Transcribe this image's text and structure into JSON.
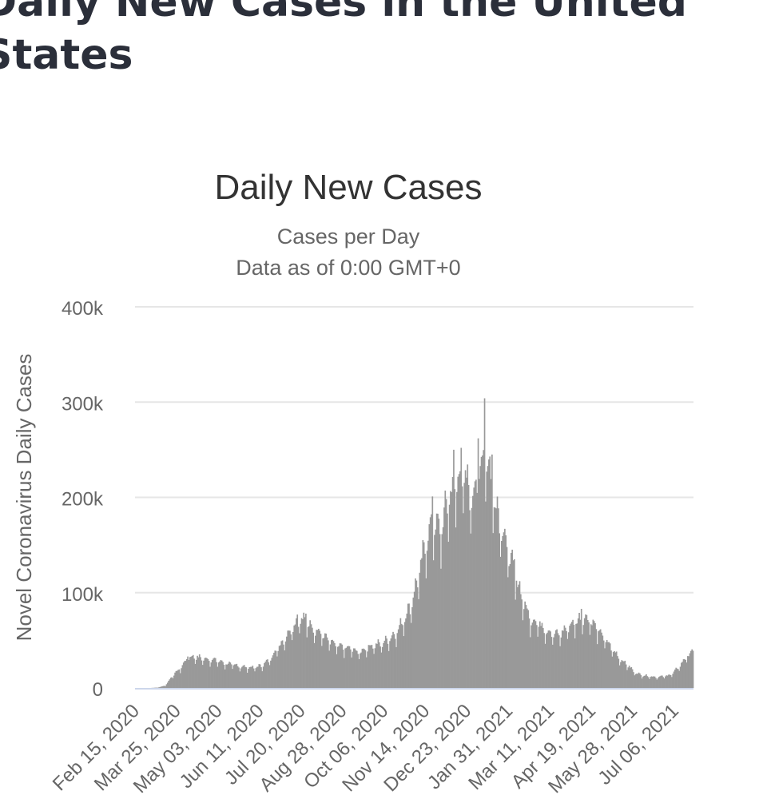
{
  "page": {
    "heading": "Daily New Cases in the United States"
  },
  "chart_data": {
    "type": "bar",
    "title": "Daily New Cases",
    "subtitle_lines": [
      "Cases per Day",
      "Data as of 0:00 GMT+0"
    ],
    "xlabel": "",
    "ylabel": "Novel Coronavirus Daily Cases",
    "ylim": [
      0,
      400000
    ],
    "y_ticks": [
      0,
      100000,
      200000,
      300000,
      400000
    ],
    "y_tick_labels": [
      "0",
      "100k",
      "200k",
      "300k",
      "400k"
    ],
    "x_tick_labels": [
      "Feb 15, 2020",
      "Mar 25, 2020",
      "May 03, 2020",
      "Jun 11, 2020",
      "Jul 20, 2020",
      "Aug 28, 2020",
      "Oct 06, 2020",
      "Nov 14, 2020",
      "Dec 23, 2020",
      "Jan 31, 2021",
      "Mar 11, 2021",
      "Apr 19, 2021",
      "May 28, 2021",
      "Jul 06, 2021"
    ],
    "x_range": [
      "Feb 15, 2020",
      "Jul 23, 2021"
    ],
    "grid": true,
    "bar_color": "#999999",
    "grid_color": "#e6e6e6",
    "axis_color": "#ccd6eb",
    "weekly_anchors": [
      [
        "2020-02-15",
        0
      ],
      [
        "2020-02-22",
        0
      ],
      [
        "2020-02-29",
        0
      ],
      [
        "2020-03-07",
        400
      ],
      [
        "2020-03-14",
        2500
      ],
      [
        "2020-03-21",
        13000
      ],
      [
        "2020-03-28",
        20000
      ],
      [
        "2020-04-04",
        31000
      ],
      [
        "2020-04-11",
        32000
      ],
      [
        "2020-04-18",
        30000
      ],
      [
        "2020-04-25",
        29000
      ],
      [
        "2020-05-02",
        28000
      ],
      [
        "2020-05-09",
        25000
      ],
      [
        "2020-05-16",
        24000
      ],
      [
        "2020-05-23",
        22000
      ],
      [
        "2020-05-30",
        21000
      ],
      [
        "2020-06-06",
        21000
      ],
      [
        "2020-06-13",
        23000
      ],
      [
        "2020-06-20",
        29000
      ],
      [
        "2020-06-27",
        40000
      ],
      [
        "2020-07-04",
        50000
      ],
      [
        "2020-07-11",
        62000
      ],
      [
        "2020-07-18",
        70000
      ],
      [
        "2020-07-25",
        68000
      ],
      [
        "2020-08-01",
        60000
      ],
      [
        "2020-08-08",
        55000
      ],
      [
        "2020-08-15",
        48000
      ],
      [
        "2020-08-22",
        43000
      ],
      [
        "2020-08-29",
        41000
      ],
      [
        "2020-09-05",
        40000
      ],
      [
        "2020-09-12",
        36000
      ],
      [
        "2020-09-19",
        41000
      ],
      [
        "2020-09-26",
        44000
      ],
      [
        "2020-10-03",
        45000
      ],
      [
        "2020-10-10",
        50000
      ],
      [
        "2020-10-17",
        56000
      ],
      [
        "2020-10-24",
        70000
      ],
      [
        "2020-10-31",
        85000
      ],
      [
        "2020-11-07",
        115000
      ],
      [
        "2020-11-14",
        150000
      ],
      [
        "2020-11-21",
        170000
      ],
      [
        "2020-11-28",
        160000
      ],
      [
        "2020-12-05",
        195000
      ],
      [
        "2020-12-12",
        210000
      ],
      [
        "2020-12-19",
        220000
      ],
      [
        "2020-12-26",
        195000
      ],
      [
        "2021-01-02",
        215000
      ],
      [
        "2021-01-09",
        245000
      ],
      [
        "2021-01-16",
        200000
      ],
      [
        "2021-01-23",
        170000
      ],
      [
        "2021-01-30",
        140000
      ],
      [
        "2021-02-06",
        115000
      ],
      [
        "2021-02-13",
        90000
      ],
      [
        "2021-02-20",
        70000
      ],
      [
        "2021-02-27",
        67000
      ],
      [
        "2021-03-06",
        60000
      ],
      [
        "2021-03-13",
        55000
      ],
      [
        "2021-03-20",
        55000
      ],
      [
        "2021-03-27",
        62000
      ],
      [
        "2021-04-03",
        67000
      ],
      [
        "2021-04-10",
        72000
      ],
      [
        "2021-04-17",
        70000
      ],
      [
        "2021-04-24",
        60000
      ],
      [
        "2021-05-01",
        50000
      ],
      [
        "2021-05-08",
        40000
      ],
      [
        "2021-05-15",
        30000
      ],
      [
        "2021-05-22",
        24000
      ],
      [
        "2021-05-29",
        16000
      ],
      [
        "2021-06-05",
        13000
      ],
      [
        "2021-06-12",
        12000
      ],
      [
        "2021-06-19",
        11000
      ],
      [
        "2021-06-26",
        12000
      ],
      [
        "2021-07-03",
        14000
      ],
      [
        "2021-07-10",
        22000
      ],
      [
        "2021-07-17",
        32000
      ],
      [
        "2021-07-23",
        38000
      ]
    ],
    "peaks": [
      [
        "2020-04-04",
        33000
      ],
      [
        "2020-07-16",
        77000
      ],
      [
        "2020-07-24",
        78000
      ],
      [
        "2020-11-20",
        201000
      ],
      [
        "2020-12-10",
        250000
      ],
      [
        "2020-12-17",
        252000
      ],
      [
        "2021-01-02",
        262000
      ],
      [
        "2021-01-08",
        304000
      ],
      [
        "2021-01-15",
        245000
      ],
      [
        "2021-02-05",
        135000
      ],
      [
        "2021-04-09",
        83000
      ]
    ]
  }
}
